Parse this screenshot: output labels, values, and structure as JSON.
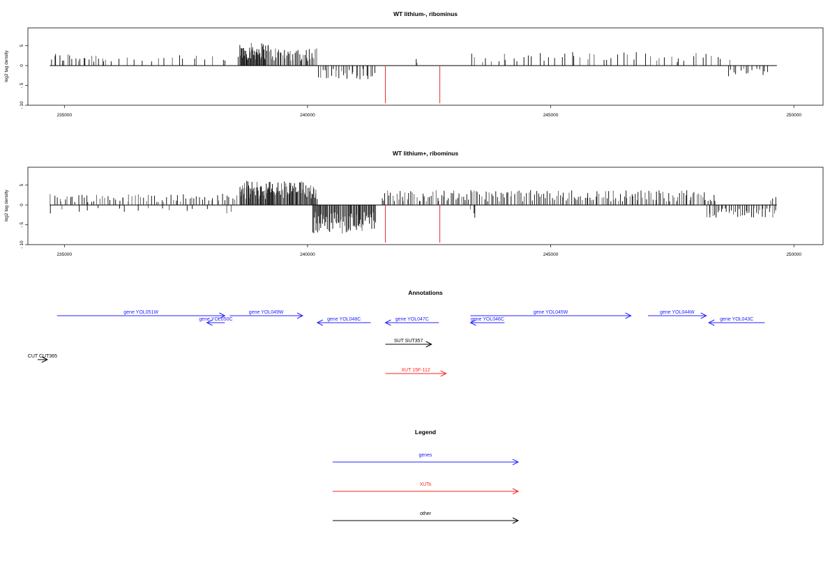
{
  "chart_data": [
    {
      "type": "bar",
      "title": "WT lithium-, ribominus",
      "ylabel": "log2 tag density",
      "xlabel": "",
      "xlim": [
        234250,
        250600
      ],
      "ylim": [
        -10,
        9.5
      ],
      "yticks": [
        -10,
        -5,
        0,
        5
      ],
      "xticks": [
        235000,
        240000,
        245000,
        250000
      ],
      "grid": false,
      "series": [
        {
          "values_mode": "strand",
          "note_strand": "plus",
          "segments": [
            {
              "x": [
                234700,
                235900
              ],
              "level": 2.2,
              "density": 22
            },
            {
              "x": [
                235900,
                238600
              ],
              "level": 1.8,
              "density": 18
            },
            {
              "x": [
                238600,
                239200
              ],
              "level": 4.0,
              "density": 45
            },
            {
              "x": [
                239200,
                240200
              ],
              "level": 3.2,
              "density": 40
            },
            {
              "x": [
                242200,
                242300
              ],
              "level": 1.5,
              "density": 2
            },
            {
              "x": [
                243300,
                248700
              ],
              "level": 2.4,
              "density": 50
            }
          ]
        },
        {
          "values_mode": "strand",
          "note_strand": "minus",
          "segments": [
            {
              "x": [
                240200,
                241400
              ],
              "level": -2.4,
              "density": 28
            },
            {
              "x": [
                248600,
                249500
              ],
              "level": -2.0,
              "density": 14
            }
          ]
        }
      ],
      "highlights": [
        {
          "x": 241600,
          "y": -9.5,
          "color": "#e03030"
        },
        {
          "x": 242720,
          "y": -9.5,
          "color": "#e03030"
        }
      ],
      "baseline": {
        "x": [
          234700,
          249650
        ],
        "y": 0
      }
    },
    {
      "type": "bar",
      "title": "WT lithium+, ribominus",
      "ylabel": "log2 tag density",
      "xlabel": "",
      "xlim": [
        234250,
        250600
      ],
      "ylim": [
        -10,
        9.5
      ],
      "yticks": [
        -10,
        -5,
        0,
        5
      ],
      "xticks": [
        235000,
        240000,
        245000,
        250000
      ],
      "grid": false,
      "series": [
        {
          "values_mode": "strand",
          "note_strand": "plus",
          "segments": [
            {
              "x": [
                234700,
                238600
              ],
              "level": 2.0,
              "density": 70
            },
            {
              "x": [
                238600,
                240200
              ],
              "level": 4.2,
              "density": 110
            },
            {
              "x": [
                241500,
                248400
              ],
              "level": 2.6,
              "density": 180
            },
            {
              "x": [
                249500,
                249650
              ],
              "level": 1.5,
              "density": 3
            }
          ]
        },
        {
          "values_mode": "strand",
          "note_strand": "minus",
          "segments": [
            {
              "x": [
                234700,
                238600
              ],
              "level": -1.5,
              "density": 16
            },
            {
              "x": [
                240100,
                241400
              ],
              "level": -5.0,
              "density": 80
            },
            {
              "x": [
                243300,
                243500
              ],
              "level": -2.5,
              "density": 3
            },
            {
              "x": [
                248200,
                249650
              ],
              "level": -2.2,
              "density": 40
            }
          ]
        }
      ],
      "highlights": [
        {
          "x": 241600,
          "y": -9.5,
          "color": "#e03030"
        },
        {
          "x": 242720,
          "y": -9.5,
          "color": "#e03030"
        }
      ],
      "baseline": {
        "x": [
          234700,
          249650
        ],
        "y": 0
      }
    }
  ],
  "annotations": {
    "title": "Annotations",
    "features": [
      {
        "label": "gene YOL051W",
        "start": 234850,
        "end": 238300,
        "strand": "+",
        "category": "gene",
        "row": 0
      },
      {
        "label": "gene YOL050C",
        "start": 237930,
        "end": 238300,
        "strand": "-",
        "category": "gene",
        "row": 1
      },
      {
        "label": "gene YOL049W",
        "start": 238400,
        "end": 239900,
        "strand": "+",
        "category": "gene",
        "row": 0
      },
      {
        "label": "gene YOL048C",
        "start": 240200,
        "end": 241300,
        "strand": "-",
        "category": "gene",
        "row": 1
      },
      {
        "label": "gene YOL047C",
        "start": 241600,
        "end": 242700,
        "strand": "-",
        "category": "gene",
        "row": 1
      },
      {
        "label": "gene YOL046C",
        "start": 243350,
        "end": 244050,
        "strand": "-",
        "category": "gene",
        "row": 1
      },
      {
        "label": "gene YOL045W",
        "start": 243350,
        "end": 246650,
        "strand": "+",
        "category": "gene",
        "row": 0
      },
      {
        "label": "gene YOL044W",
        "start": 247000,
        "end": 248200,
        "strand": "+",
        "category": "gene",
        "row": 0
      },
      {
        "label": "gene YOL043C",
        "start": 248250,
        "end": 249400,
        "strand": "-",
        "category": "gene",
        "row": 1
      },
      {
        "label": "SUT SUT357",
        "start": 241600,
        "end": 242550,
        "strand": "+",
        "category": "other",
        "row": 2
      },
      {
        "label": "CUT CUT365",
        "start": 234450,
        "end": 234650,
        "strand": "+",
        "category": "other",
        "row": 3
      },
      {
        "label": "XUT 15F-112",
        "start": 241600,
        "end": 242850,
        "strand": "+",
        "category": "XUT",
        "row": 4
      }
    ]
  },
  "legend": {
    "title": "Legend",
    "items": [
      {
        "label": "genes",
        "color": "#2020ff"
      },
      {
        "label": "XUTs",
        "color": "#ff2020"
      },
      {
        "label": "other",
        "color": "#000000"
      }
    ]
  },
  "colors": {
    "gene": "#2020ff",
    "XUT": "#ff2020",
    "other": "#000000",
    "highlight": "#e03030"
  }
}
